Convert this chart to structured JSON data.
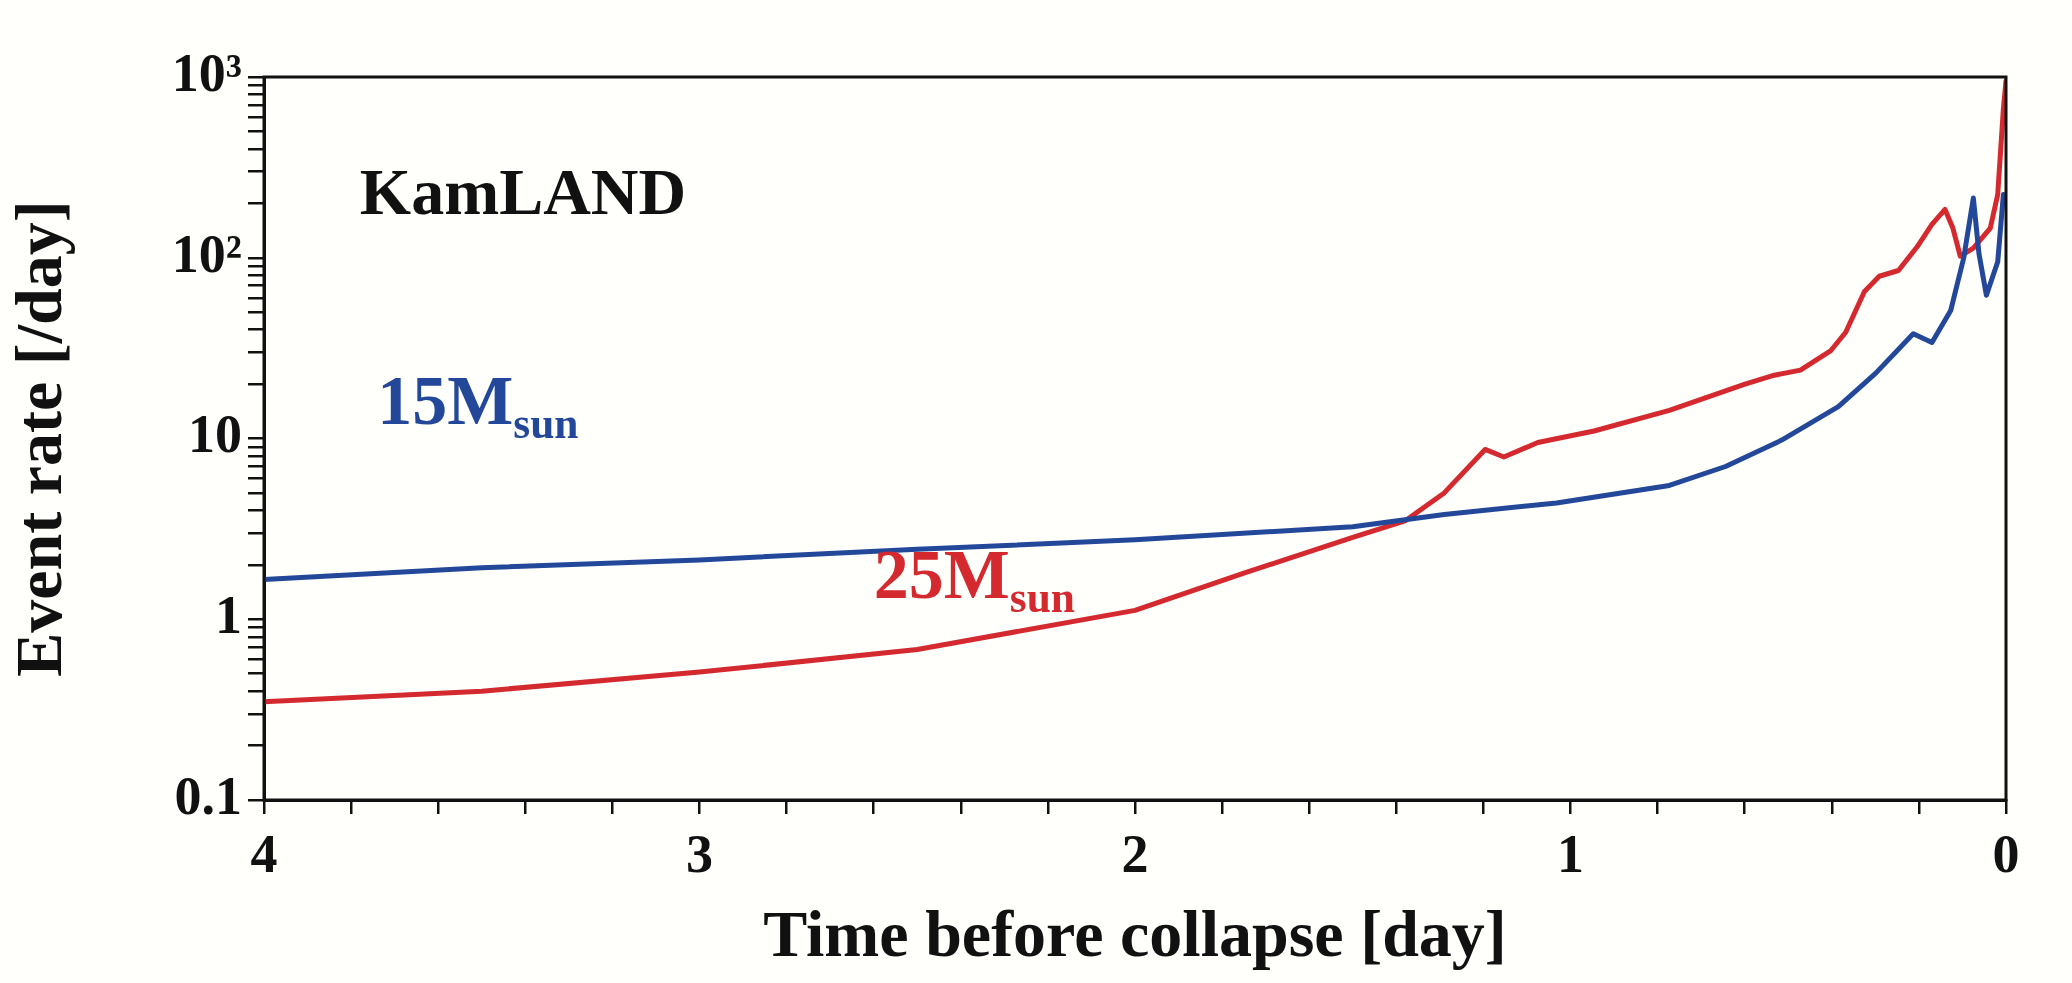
{
  "chart_data": {
    "type": "line",
    "xlabel": "Time before collapse [day]",
    "ylabel": "Event rate [/day]",
    "annotations": [
      "KamLAND"
    ],
    "log": "y",
    "grid": false,
    "legend": false,
    "marker": "none",
    "line_style": "solid",
    "xlim": [
      4,
      0
    ],
    "ylim": [
      0.1,
      1000
    ],
    "xticks": [
      4,
      {
        "value": 3.8,
        "label": null
      },
      {
        "value": 3.6,
        "label": null
      },
      {
        "value": 3.4,
        "label": null
      },
      {
        "value": 3.2,
        "label": null
      },
      3,
      {
        "value": 2.8,
        "label": null
      },
      {
        "value": 2.6,
        "label": null
      },
      {
        "value": 2.4,
        "label": null
      },
      {
        "value": 2.2,
        "label": null
      },
      2,
      {
        "value": 1.8,
        "label": null
      },
      {
        "value": 1.6,
        "label": null
      },
      {
        "value": 1.4,
        "label": null
      },
      {
        "value": 1.2,
        "label": null
      },
      1,
      {
        "value": 0.8,
        "label": null
      },
      {
        "value": 0.6,
        "label": null
      },
      {
        "value": 0.4,
        "label": null
      },
      {
        "value": 0.2,
        "label": null
      },
      0
    ],
    "yticks": [
      0.1,
      {
        "value": 0.2,
        "label": null
      },
      {
        "value": 0.3,
        "label": null
      },
      {
        "value": 0.4,
        "label": null
      },
      {
        "value": 0.5,
        "label": null
      },
      {
        "value": 0.6,
        "label": null
      },
      {
        "value": 0.7,
        "label": null
      },
      {
        "value": 0.8,
        "label": null
      },
      {
        "value": 0.9,
        "label": null
      },
      1,
      {
        "value": 2,
        "label": null
      },
      {
        "value": 3,
        "label": null
      },
      {
        "value": 4,
        "label": null
      },
      {
        "value": 5,
        "label": null
      },
      {
        "value": 6,
        "label": null
      },
      {
        "value": 7,
        "label": null
      },
      {
        "value": 8,
        "label": null
      },
      {
        "value": 9,
        "label": null
      },
      10,
      {
        "value": 20,
        "label": null
      },
      {
        "value": 30,
        "label": null
      },
      {
        "value": 40,
        "label": null
      },
      {
        "value": 50,
        "label": null
      },
      {
        "value": 60,
        "label": null
      },
      {
        "value": 70,
        "label": null
      },
      {
        "value": 80,
        "label": null
      },
      {
        "value": 90,
        "label": null
      },
      {
        "value": 100,
        "label": "10²"
      },
      {
        "value": 200,
        "label": null
      },
      {
        "value": 300,
        "label": null
      },
      {
        "value": 400,
        "label": null
      },
      {
        "value": 500,
        "label": null
      },
      {
        "value": 600,
        "label": null
      },
      {
        "value": 700,
        "label": null
      },
      {
        "value": 800,
        "label": null
      },
      {
        "value": 900,
        "label": null
      },
      {
        "value": 1000,
        "label": "10³"
      }
    ],
    "series": [
      {
        "name": "15M$_{sun}$",
        "color": "#23489a",
        "x": [
          4,
          3.5,
          3,
          2.5,
          2,
          1.5,
          1.29,
          1.032,
          0.773,
          0.644,
          0.515,
          0.385,
          0.299,
          0.213,
          0.17,
          0.127,
          0.097,
          0.075,
          0.062,
          0.045,
          0.019,
          0.006,
          0
        ],
        "values": [
          1.66,
          1.93,
          2.13,
          2.44,
          2.75,
          3.25,
          3.8,
          4.4,
          5.5,
          7.0,
          9.8,
          15,
          23,
          38,
          34,
          51,
          100,
          214,
          105,
          62,
          95,
          224,
          200
        ]
      },
      {
        "name": "25M$_{sun}$",
        "color": "#d42a2f",
        "x": [
          4,
          3.5,
          3,
          2.5,
          2,
          1.75,
          1.5,
          1.38,
          1.29,
          1.196,
          1.153,
          1.075,
          0.946,
          0.773,
          0.601,
          0.532,
          0.472,
          0.403,
          0.368,
          0.325,
          0.291,
          0.247,
          0.204,
          0.17,
          0.14,
          0.122,
          0.105,
          0.075,
          0.036,
          0.019,
          0.006,
          0
        ],
        "values": [
          0.35,
          0.4,
          0.51,
          0.68,
          1.12,
          1.8,
          2.84,
          3.5,
          5.0,
          8.7,
          7.9,
          9.5,
          11,
          14.3,
          19.9,
          22.4,
          23.9,
          30.5,
          38.7,
          65,
          79,
          85,
          115,
          153,
          185,
          146,
          102,
          113,
          146,
          224,
          665,
          950
        ]
      }
    ]
  }
}
